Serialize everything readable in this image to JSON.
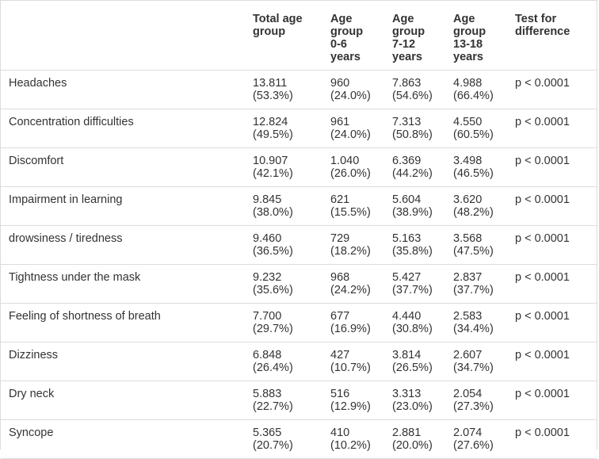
{
  "headers": {
    "total": [
      "Total age",
      "group"
    ],
    "g1": [
      "Age",
      "group",
      "0-6",
      "years"
    ],
    "g2": [
      "Age",
      "group",
      "7-12",
      "years"
    ],
    "g3": [
      "Age",
      "group",
      "13-18",
      "years"
    ],
    "test": [
      "Test for",
      "difference"
    ]
  },
  "rows": [
    {
      "label": "Headaches",
      "total": "13.811",
      "total_pct": "(53.3%)",
      "g1": "960",
      "g1_pct": "(24.0%)",
      "g2": "7.863",
      "g2_pct": "(54.6%)",
      "g3": "4.988",
      "g3_pct": "(66.4%)",
      "p": "p < 0.0001"
    },
    {
      "label": "Concentration difficulties",
      "total": "12.824",
      "total_pct": "(49.5%)",
      "g1": "961",
      "g1_pct": "(24.0%)",
      "g2": "7.313",
      "g2_pct": "(50.8%)",
      "g3": "4.550",
      "g3_pct": "(60.5%)",
      "p": "p < 0.0001"
    },
    {
      "label": "Discomfort",
      "total": "10.907",
      "total_pct": "(42.1%)",
      "g1": "1.040",
      "g1_pct": "(26.0%)",
      "g2": "6.369",
      "g2_pct": "(44.2%)",
      "g3": "3.498",
      "g3_pct": "(46.5%)",
      "p": "p < 0.0001"
    },
    {
      "label": "Impairment in learning",
      "total": "9.845",
      "total_pct": "(38.0%)",
      "g1": "621",
      "g1_pct": "(15.5%)",
      "g2": "5.604",
      "g2_pct": "(38.9%)",
      "g3": "3.620",
      "g3_pct": "(48.2%)",
      "p": "p < 0.0001"
    },
    {
      "label": "drowsiness / tiredness",
      "total": "9.460",
      "total_pct": "(36.5%)",
      "g1": "729",
      "g1_pct": "(18.2%)",
      "g2": "5.163",
      "g2_pct": "(35.8%)",
      "g3": "3.568",
      "g3_pct": "(47.5%)",
      "p": "p < 0.0001"
    },
    {
      "label": "Tightness under the mask",
      "total": "9.232",
      "total_pct": "(35.6%)",
      "g1": "968",
      "g1_pct": "(24.2%)",
      "g2": "5.427",
      "g2_pct": "(37.7%)",
      "g3": "2.837",
      "g3_pct": "(37.7%)",
      "p": "p < 0.0001"
    },
    {
      "label": "Feeling of shortness of breath",
      "total": "7.700",
      "total_pct": "(29.7%)",
      "g1": "677",
      "g1_pct": "(16.9%)",
      "g2": "4.440",
      "g2_pct": "(30.8%)",
      "g3": "2.583",
      "g3_pct": "(34.4%)",
      "p": "p < 0.0001"
    },
    {
      "label": "Dizziness",
      "total": "6.848",
      "total_pct": "(26.4%)",
      "g1": "427",
      "g1_pct": "(10.7%)",
      "g2": "3.814",
      "g2_pct": "(26.5%)",
      "g3": "2.607",
      "g3_pct": "(34.7%)",
      "p": "p < 0.0001"
    },
    {
      "label": "Dry neck",
      "total": "5.883",
      "total_pct": "(22.7%)",
      "g1": "516",
      "g1_pct": "(12.9%)",
      "g2": "3.313",
      "g2_pct": "(23.0%)",
      "g3": "2.054",
      "g3_pct": "(27.3%)",
      "p": "p < 0.0001"
    },
    {
      "label": "Syncope",
      "total": "5.365",
      "total_pct": "(20.7%)",
      "g1": "410",
      "g1_pct": "(10.2%)",
      "g2": "2.881",
      "g2_pct": "(20.0%)",
      "g3": "2.074",
      "g3_pct": "(27.6%)",
      "p": "p < 0.0001"
    }
  ]
}
